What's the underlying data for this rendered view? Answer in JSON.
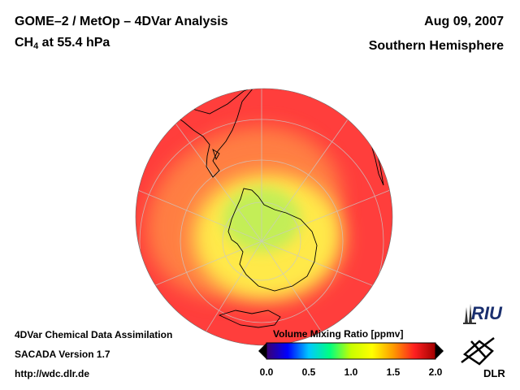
{
  "header": {
    "title_line1": "GOME–2 / MetOp – 4DVar Analysis",
    "species": "CH",
    "species_sub": "4",
    "level": " at 55.4 hPa",
    "date": "Aug 09, 2007",
    "region": "Southern Hemisphere"
  },
  "footer": {
    "line1": "4DVar Chemical Data Assimilation",
    "line2": "SACADA Version 1.7",
    "line3": "http://wdc.dlr.de"
  },
  "colorbar": {
    "title": "Volume Mixing Ratio [ppmv]",
    "ticks": [
      "0.0",
      "0.5",
      "1.0",
      "1.5",
      "2.0"
    ],
    "min": 0.0,
    "max": 2.0,
    "colors": [
      "#3a0070",
      "#0000ff",
      "#00c8ff",
      "#00ff80",
      "#c8ff00",
      "#ffff00",
      "#ff9b00",
      "#ff2020",
      "#a00000"
    ]
  },
  "map": {
    "projection": "orthographic",
    "pole": "south",
    "background_value_ppmv": 1.7,
    "vortex_min_ppmv": 1.0,
    "colors": {
      "background": "#ff3e3c",
      "ring": "#ff8a45",
      "mid": "#ffe94a",
      "core": "#b9ef5a"
    }
  },
  "logos": {
    "riu": "RIU",
    "dlr": "DLR"
  }
}
